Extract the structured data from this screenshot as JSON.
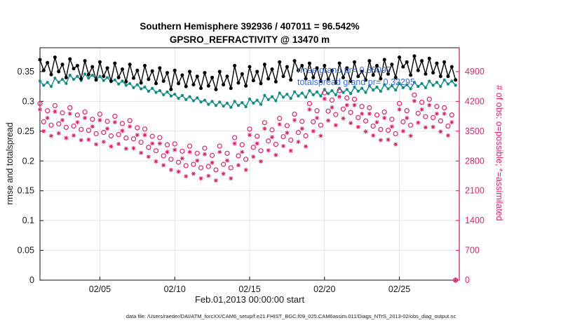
{
  "figure": {
    "title_line1": "Southern Hemisphere 392936 / 407011 = 96.542%",
    "title_line2": "GPSRO_REFRACTIVITY @ 13470 m",
    "xlabel": "Feb.01,2013 00:00:00 start",
    "ylabel_left": "rmse and totalspread",
    "ylabel_right": "# of obs: o=possible; *=assimilated",
    "datafile_note": "data file: /Users/raeder/DAI/ATM_forcXX/CAM6_setup/f.e21.FHIST_BGC.f09_025.CAM6assim.011/Diags_NTrS_2013-02/obs_diag_output.nc",
    "annotations": [
      {
        "text": "rmse grand pr= 0.35097",
        "color": "#3b6cd6"
      },
      {
        "text": "totalspread grand pr= 0.32295",
        "color": "#3b6cd6"
      }
    ]
  },
  "chart_data": {
    "type": "line",
    "title": "Southern Hemisphere 392936 / 407011 = 96.542% — GPSRO_REFRACTIVITY @ 13470 m",
    "xlabel": "Feb.01,2013 00:00:00 start",
    "grid": true,
    "x_start_day": 0,
    "x_step_days": 0.25,
    "xlim_days": [
      0,
      28
    ],
    "x_tick_days": [
      4,
      9,
      14,
      19,
      24
    ],
    "x_tick_labels": [
      "02/05",
      "02/10",
      "02/15",
      "02/20",
      "02/25"
    ],
    "left_axis": {
      "label": "rmse and totalspread",
      "lim": [
        0,
        0.39
      ],
      "ticks": [
        0,
        0.05,
        0.1,
        0.15,
        0.2,
        0.25,
        0.3,
        0.35
      ],
      "color": "#262626"
    },
    "right_axis": {
      "label": "# of obs: o=possible; *=assimilated",
      "lim": [
        0,
        5460
      ],
      "ticks": [
        0,
        700,
        1400,
        2100,
        2800,
        3500,
        4200,
        4900
      ],
      "color": "#d6246e"
    },
    "series": [
      {
        "name": "rmse",
        "axis": "left",
        "color": "#000000",
        "marker": "dot",
        "grand_mean": 0.35097,
        "values": [
          0.37,
          0.352,
          0.365,
          0.345,
          0.374,
          0.35,
          0.362,
          0.34,
          0.371,
          0.355,
          0.36,
          0.338,
          0.368,
          0.345,
          0.358,
          0.336,
          0.366,
          0.342,
          0.356,
          0.334,
          0.364,
          0.34,
          0.354,
          0.333,
          0.362,
          0.339,
          0.352,
          0.331,
          0.36,
          0.337,
          0.351,
          0.33,
          0.356,
          0.334,
          0.348,
          0.32,
          0.352,
          0.33,
          0.344,
          0.325,
          0.35,
          0.328,
          0.342,
          0.322,
          0.348,
          0.326,
          0.34,
          0.32,
          0.35,
          0.328,
          0.342,
          0.322,
          0.36,
          0.331,
          0.346,
          0.326,
          0.358,
          0.335,
          0.35,
          0.33,
          0.362,
          0.338,
          0.354,
          0.333,
          0.366,
          0.342,
          0.358,
          0.336,
          0.368,
          0.352,
          0.36,
          0.338,
          0.364,
          0.34,
          0.356,
          0.334,
          0.36,
          0.337,
          0.352,
          0.331,
          0.364,
          0.34,
          0.356,
          0.334,
          0.366,
          0.342,
          0.35,
          0.336,
          0.368,
          0.344,
          0.36,
          0.338,
          0.37,
          0.346,
          0.362,
          0.34,
          0.374,
          0.358,
          0.366,
          0.344,
          0.376,
          0.352,
          0.368,
          0.346,
          0.372,
          0.348,
          0.364,
          0.342,
          0.366,
          0.342,
          0.358,
          0.336
        ]
      },
      {
        "name": "totalspread",
        "axis": "left",
        "color": "#0d8c84",
        "marker": "dot",
        "grand_mean": 0.32295,
        "values": [
          0.334,
          0.327,
          0.332,
          0.325,
          0.339,
          0.332,
          0.337,
          0.33,
          0.344,
          0.337,
          0.342,
          0.335,
          0.346,
          0.339,
          0.344,
          0.337,
          0.342,
          0.335,
          0.34,
          0.333,
          0.336,
          0.329,
          0.334,
          0.327,
          0.33,
          0.323,
          0.328,
          0.321,
          0.324,
          0.317,
          0.322,
          0.315,
          0.318,
          0.311,
          0.316,
          0.309,
          0.312,
          0.305,
          0.31,
          0.303,
          0.308,
          0.301,
          0.306,
          0.299,
          0.302,
          0.295,
          0.3,
          0.293,
          0.299,
          0.292,
          0.297,
          0.29,
          0.3,
          0.293,
          0.298,
          0.291,
          0.304,
          0.297,
          0.302,
          0.295,
          0.31,
          0.303,
          0.308,
          0.301,
          0.314,
          0.307,
          0.312,
          0.305,
          0.316,
          0.309,
          0.314,
          0.307,
          0.318,
          0.311,
          0.316,
          0.309,
          0.32,
          0.313,
          0.318,
          0.311,
          0.322,
          0.315,
          0.32,
          0.313,
          0.324,
          0.317,
          0.322,
          0.315,
          0.326,
          0.319,
          0.324,
          0.317,
          0.328,
          0.321,
          0.326,
          0.319,
          0.33,
          0.323,
          0.328,
          0.321,
          0.332,
          0.325,
          0.33,
          0.323,
          0.334,
          0.327,
          0.332,
          0.325,
          0.336,
          0.329,
          0.334,
          0.327
        ]
      },
      {
        "name": "possible_obs",
        "axis": "right",
        "color": "#d6246e",
        "marker": "circle",
        "values": [
          4150,
          3720,
          3980,
          3640,
          4100,
          3670,
          3930,
          3590,
          4050,
          3620,
          3880,
          3540,
          3950,
          3520,
          3780,
          3440,
          3900,
          3470,
          3730,
          3390,
          3850,
          3420,
          3680,
          3340,
          3750,
          3320,
          3580,
          3240,
          3550,
          3120,
          3380,
          3040,
          3350,
          2920,
          3180,
          2840,
          3200,
          2770,
          3030,
          2690,
          3150,
          2720,
          2980,
          2640,
          3100,
          2670,
          2930,
          2590,
          3150,
          2720,
          2980,
          2640,
          3350,
          2920,
          3180,
          2840,
          3550,
          3120,
          3380,
          3040,
          3700,
          3270,
          3530,
          3190,
          3800,
          3370,
          3630,
          3290,
          3900,
          3470,
          3730,
          3390,
          4150,
          3720,
          3980,
          3640,
          4400,
          3970,
          4230,
          3890,
          4450,
          4020,
          4280,
          3940,
          4250,
          3820,
          4080,
          3740,
          4050,
          3620,
          3880,
          3540,
          3950,
          3520,
          3780,
          3440,
          4150,
          3720,
          3980,
          3640,
          4350,
          3920,
          4180,
          3840,
          4250,
          3820,
          4080,
          3740,
          4050,
          3620,
          3880,
          0
        ]
      },
      {
        "name": "assimilated_obs",
        "axis": "right",
        "color": "#d6246e",
        "marker": "asterisk",
        "values": [
          4010,
          3500,
          3810,
          3390,
          3960,
          3450,
          3760,
          3340,
          3910,
          3400,
          3710,
          3290,
          3810,
          3300,
          3610,
          3190,
          3760,
          3250,
          3560,
          3140,
          3710,
          3200,
          3510,
          3090,
          3610,
          3100,
          3410,
          2990,
          3410,
          2900,
          3210,
          2790,
          3210,
          2700,
          3010,
          2590,
          3060,
          2550,
          2860,
          2440,
          3010,
          2500,
          2810,
          2390,
          2960,
          2450,
          2760,
          2340,
          3010,
          2500,
          2810,
          2390,
          3210,
          2700,
          3010,
          2590,
          3410,
          2900,
          3210,
          2790,
          3560,
          3050,
          3360,
          2940,
          3660,
          3150,
          3460,
          3040,
          3760,
          3250,
          3560,
          3140,
          4010,
          3500,
          3810,
          3390,
          4260,
          3750,
          4060,
          3640,
          4310,
          3800,
          4110,
          3690,
          4110,
          3600,
          3910,
          3490,
          3910,
          3400,
          3710,
          3290,
          3810,
          3300,
          3610,
          3190,
          4010,
          3500,
          3810,
          3390,
          4210,
          3700,
          4010,
          3590,
          4110,
          3600,
          3910,
          3490,
          3910,
          3400,
          3710,
          0
        ]
      }
    ]
  }
}
